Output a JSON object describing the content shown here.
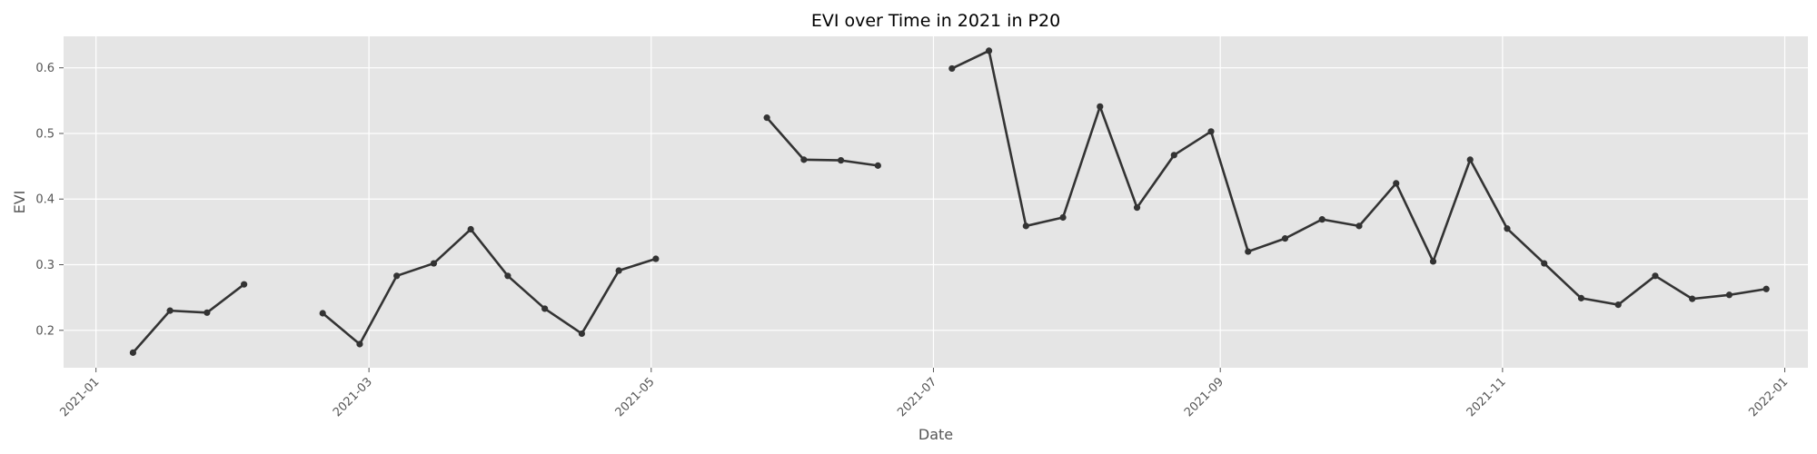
{
  "chart_data": {
    "type": "line",
    "title": "EVI over Time in 2021 in P20",
    "xlabel": "Date",
    "ylabel": "EVI",
    "x_axis_type": "date",
    "xlim": [
      "2020-12-25",
      "2022-01-06"
    ],
    "ylim": [
      0.143,
      0.648
    ],
    "x_ticks": [
      "2021-01",
      "2021-03",
      "2021-05",
      "2021-07",
      "2021-09",
      "2021-11",
      "2022-01"
    ],
    "y_ticks": [
      "0.2",
      "0.3",
      "0.4",
      "0.5",
      "0.6"
    ],
    "grid": true,
    "legend": "none",
    "colors": {
      "line": "#333333",
      "marker": "#333333",
      "plot_background": "#e5e5e5",
      "grid": "#ffffff"
    },
    "series": [
      {
        "segments": [
          [
            {
              "x": "2021-01-09",
              "y": 0.166
            },
            {
              "x": "2021-01-17",
              "y": 0.23
            },
            {
              "x": "2021-01-25",
              "y": 0.227
            },
            {
              "x": "2021-02-02",
              "y": 0.27
            }
          ],
          [
            {
              "x": "2021-02-19",
              "y": 0.226
            },
            {
              "x": "2021-02-27",
              "y": 0.179
            },
            {
              "x": "2021-03-07",
              "y": 0.283
            },
            {
              "x": "2021-03-15",
              "y": 0.302
            },
            {
              "x": "2021-03-23",
              "y": 0.354
            },
            {
              "x": "2021-03-31",
              "y": 0.283
            },
            {
              "x": "2021-04-08",
              "y": 0.233
            },
            {
              "x": "2021-04-16",
              "y": 0.195
            },
            {
              "x": "2021-04-24",
              "y": 0.291
            },
            {
              "x": "2021-05-02",
              "y": 0.309
            }
          ],
          [
            {
              "x": "2021-05-26",
              "y": 0.524
            },
            {
              "x": "2021-06-03",
              "y": 0.46
            },
            {
              "x": "2021-06-11",
              "y": 0.459
            },
            {
              "x": "2021-06-19",
              "y": 0.451
            }
          ],
          [
            {
              "x": "2021-07-05",
              "y": 0.599
            },
            {
              "x": "2021-07-13",
              "y": 0.626
            },
            {
              "x": "2021-07-21",
              "y": 0.359
            },
            {
              "x": "2021-07-29",
              "y": 0.372
            },
            {
              "x": "2021-08-06",
              "y": 0.541
            },
            {
              "x": "2021-08-14",
              "y": 0.387
            },
            {
              "x": "2021-08-22",
              "y": 0.467
            },
            {
              "x": "2021-08-30",
              "y": 0.503
            },
            {
              "x": "2021-09-07",
              "y": 0.32
            },
            {
              "x": "2021-09-15",
              "y": 0.34
            },
            {
              "x": "2021-09-23",
              "y": 0.369
            },
            {
              "x": "2021-10-01",
              "y": 0.359
            },
            {
              "x": "2021-10-09",
              "y": 0.424
            },
            {
              "x": "2021-10-17",
              "y": 0.305
            },
            {
              "x": "2021-10-25",
              "y": 0.46
            },
            {
              "x": "2021-11-02",
              "y": 0.355
            },
            {
              "x": "2021-11-10",
              "y": 0.302
            },
            {
              "x": "2021-11-18",
              "y": 0.249
            },
            {
              "x": "2021-11-26",
              "y": 0.239
            },
            {
              "x": "2021-12-04",
              "y": 0.283
            },
            {
              "x": "2021-12-12",
              "y": 0.248
            },
            {
              "x": "2021-12-20",
              "y": 0.254
            },
            {
              "x": "2021-12-28",
              "y": 0.263
            }
          ]
        ]
      }
    ]
  }
}
